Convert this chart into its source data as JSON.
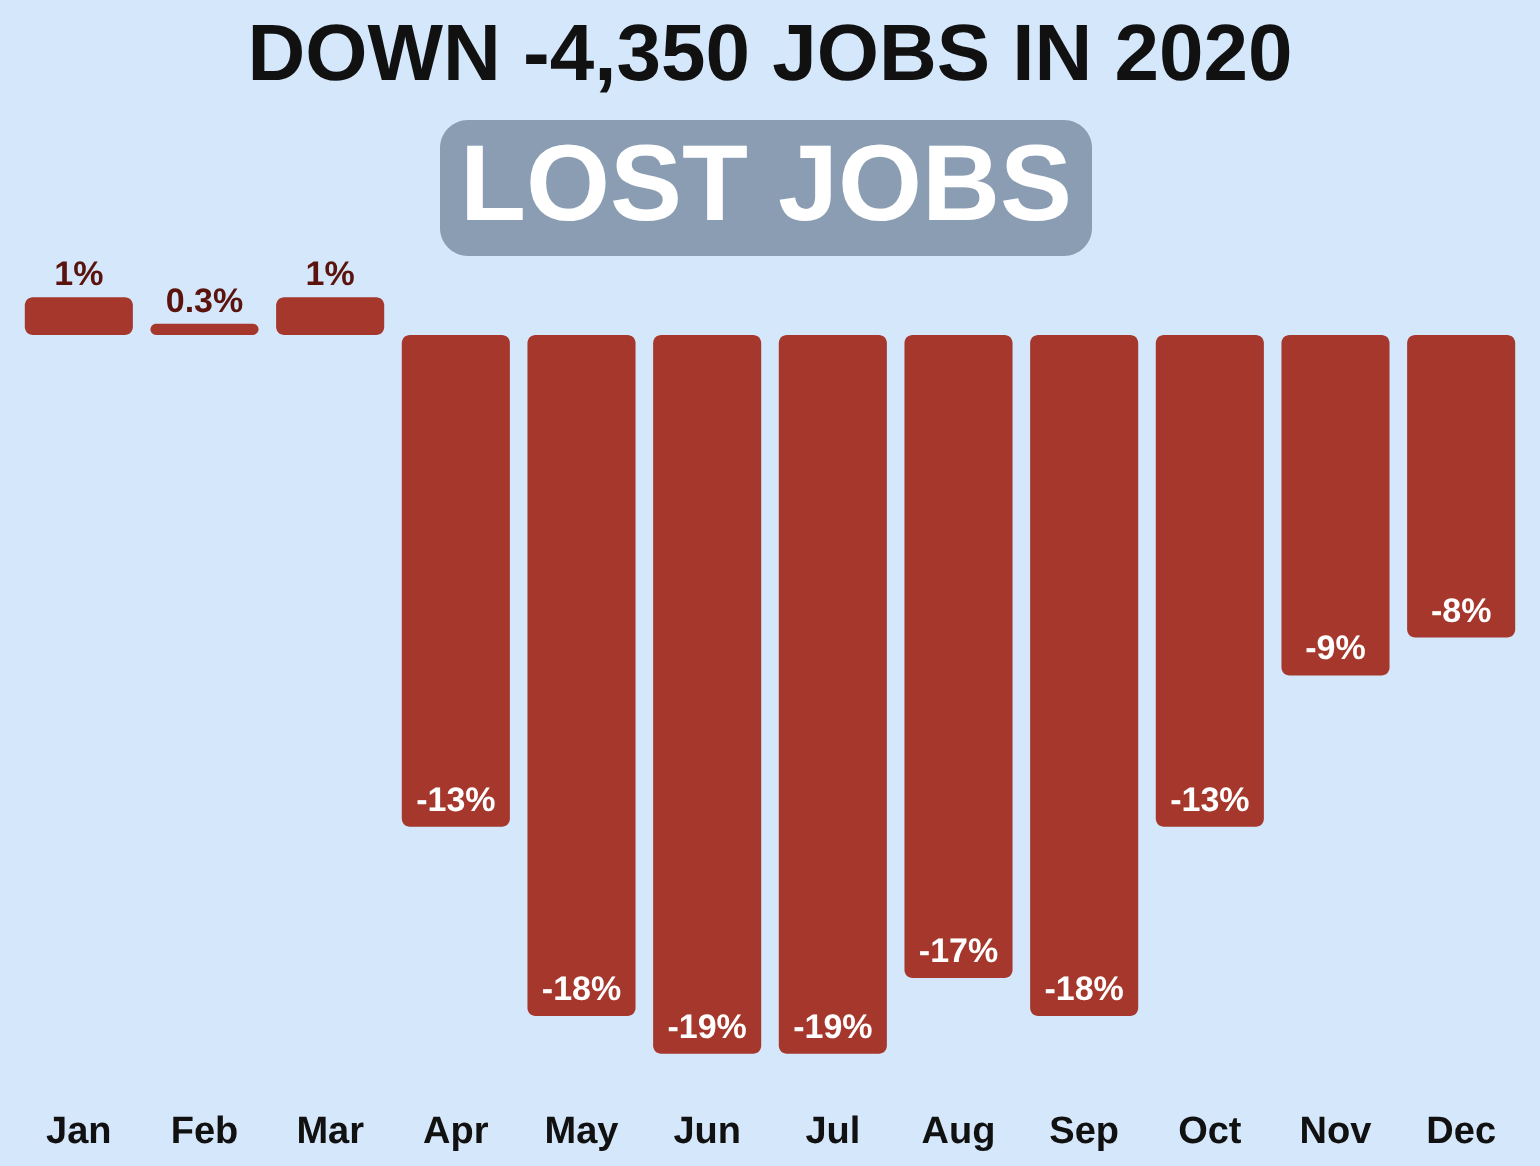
{
  "chart_data": {
    "type": "bar",
    "title": "DOWN -4,350 JOBS IN 2020",
    "subtitle": "LOST JOBS",
    "categories": [
      "Jan",
      "Feb",
      "Mar",
      "Apr",
      "May",
      "Jun",
      "Jul",
      "Aug",
      "Sep",
      "Oct",
      "Nov",
      "Dec"
    ],
    "values": [
      1,
      0.3,
      1,
      -13,
      -18,
      -19,
      -19,
      -17,
      -18,
      -13,
      -9,
      -8
    ],
    "value_labels": [
      "1%",
      "0.3%",
      "1%",
      "-13%",
      "-18%",
      "-19%",
      "-19%",
      "-17%",
      "-18%",
      "-13%",
      "-9%",
      "-8%"
    ],
    "color": "#a5372c"
  }
}
